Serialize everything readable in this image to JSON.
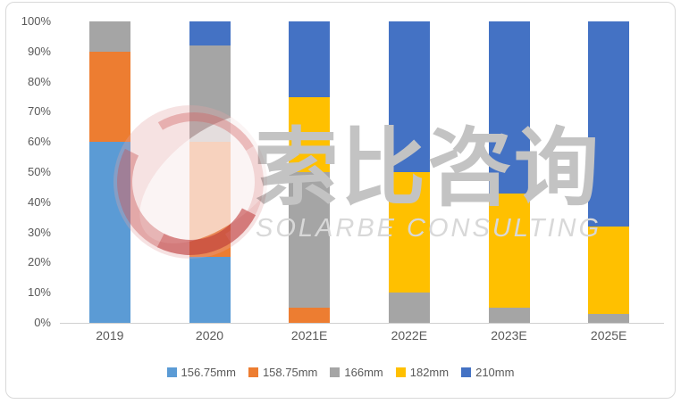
{
  "watermark": {
    "brand_cn": "索比咨询",
    "brand_en": "SOLARBE CONSULTING",
    "logo_colors": {
      "circle_pink": "#E4A6A6",
      "crescent_red": "#C43E3E",
      "lens_white": "#FFFFFF"
    }
  },
  "chart_data": {
    "type": "bar",
    "stacked": true,
    "percent_stacked": true,
    "title": "",
    "xlabel": "",
    "ylabel": "",
    "grid": false,
    "legend_position": "bottom",
    "categories": [
      "2019",
      "2020",
      "2021E",
      "2022E",
      "2023E",
      "2025E"
    ],
    "series": [
      {
        "name": "156.75mm",
        "color": "#5B9BD5",
        "values": [
          60,
          22,
          0,
          0,
          0,
          0
        ]
      },
      {
        "name": "158.75mm",
        "color": "#ED7D31",
        "values": [
          30,
          38,
          5,
          0,
          0,
          0
        ]
      },
      {
        "name": "166mm",
        "color": "#A5A5A5",
        "values": [
          10,
          32,
          45,
          10,
          5,
          3
        ]
      },
      {
        "name": "182mm",
        "color": "#FFC000",
        "values": [
          0,
          0,
          25,
          40,
          38,
          29
        ]
      },
      {
        "name": "210mm",
        "color": "#4472C4",
        "values": [
          0,
          8,
          25,
          50,
          57,
          68
        ]
      }
    ],
    "y_axis": {
      "min": 0,
      "max": 100,
      "step": 10,
      "tick_labels": [
        "0%",
        "10%",
        "20%",
        "30%",
        "40%",
        "50%",
        "60%",
        "70%",
        "80%",
        "90%",
        "100%"
      ]
    }
  }
}
